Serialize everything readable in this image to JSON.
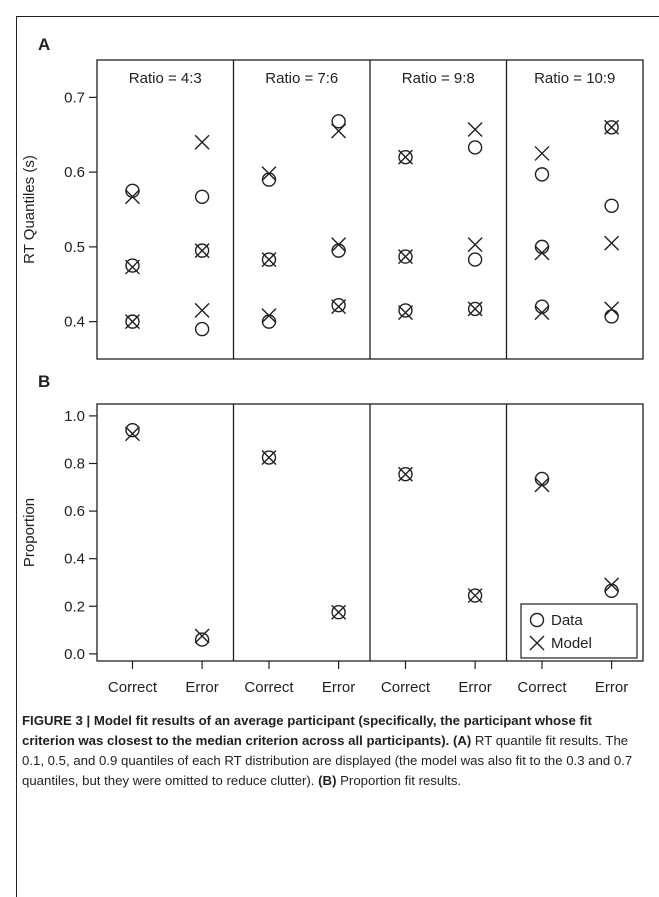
{
  "chart_data": [
    {
      "panel_label": "A",
      "type": "scatter",
      "ylabel": "RT Quantiles (s)",
      "ylim": [
        0.35,
        0.75
      ],
      "yticks": [
        "0.4",
        "0.5",
        "0.6",
        "0.7"
      ],
      "x_categories": [
        "Correct",
        "Error"
      ],
      "facets": [
        {
          "title": "Ratio = 4:3",
          "data": {
            "correct": [
              0.4,
              0.475,
              0.575
            ],
            "error": [
              0.39,
              0.495,
              0.567
            ]
          },
          "model": {
            "correct": [
              0.4,
              0.473,
              0.567
            ],
            "error": [
              0.415,
              0.495,
              0.64
            ]
          }
        },
        {
          "title": "Ratio = 7:6",
          "data": {
            "correct": [
              0.4,
              0.483,
              0.59
            ],
            "error": [
              0.422,
              0.495,
              0.668
            ]
          },
          "model": {
            "correct": [
              0.408,
              0.483,
              0.598
            ],
            "error": [
              0.42,
              0.503,
              0.655
            ]
          }
        },
        {
          "title": "Ratio = 9:8",
          "data": {
            "correct": [
              0.415,
              0.487,
              0.62
            ],
            "error": [
              0.417,
              0.483,
              0.633
            ]
          },
          "model": {
            "correct": [
              0.412,
              0.487,
              0.62
            ],
            "error": [
              0.417,
              0.503,
              0.657
            ]
          }
        },
        {
          "title": "Ratio = 10:9",
          "data": {
            "correct": [
              0.42,
              0.5,
              0.597
            ],
            "error": [
              0.407,
              0.555,
              0.66
            ]
          },
          "model": {
            "correct": [
              0.412,
              0.492,
              0.625
            ],
            "error": [
              0.417,
              0.505,
              0.66
            ]
          }
        }
      ]
    },
    {
      "panel_label": "B",
      "type": "scatter",
      "ylabel": "Proportion",
      "ylim": [
        -0.03,
        1.05
      ],
      "yticks": [
        "0.0",
        "0.2",
        "0.4",
        "0.6",
        "0.8",
        "1.0"
      ],
      "x_categories": [
        "Correct",
        "Error"
      ],
      "facets": [
        {
          "data": {
            "correct": 0.94,
            "error": 0.06
          },
          "model": {
            "correct": 0.925,
            "error": 0.075
          }
        },
        {
          "data": {
            "correct": 0.825,
            "error": 0.175
          },
          "model": {
            "correct": 0.825,
            "error": 0.175
          }
        },
        {
          "data": {
            "correct": 0.755,
            "error": 0.245
          },
          "model": {
            "correct": 0.755,
            "error": 0.245
          }
        },
        {
          "data": {
            "correct": 0.735,
            "error": 0.265
          },
          "model": {
            "correct": 0.71,
            "error": 0.29
          }
        }
      ],
      "legend": {
        "position": "bottom-right",
        "entries": [
          "Data",
          "Model"
        ]
      }
    }
  ],
  "caption": {
    "heading": "FIGURE 3 | Model fit results of an average participant (specifically, the participant whose fit criterion was closest to the median criterion across all participants).",
    "label_a": "(A)",
    "text_a": "RT quantile fit results. The 0.1, 0.5, and 0.9 quantiles of each RT distribution are displayed (the model was also fit to the 0.3 and 0.7 quantiles, but they were omitted to reduce clutter).",
    "label_b": "(B)",
    "text_b": "Proportion fit results."
  }
}
